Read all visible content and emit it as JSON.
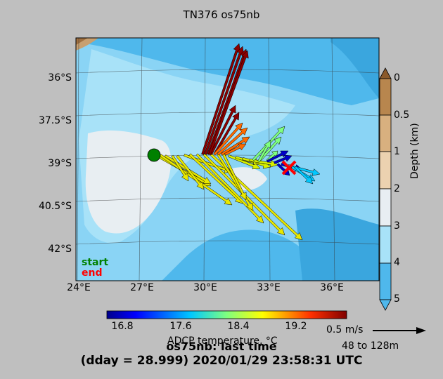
{
  "title": "TN376 os75nb",
  "latitude_labels": [
    "36°S",
    "37.5°S",
    "39°S",
    "40.5°S",
    "42°S"
  ],
  "longitude_labels": [
    "24°E",
    "27°E",
    "30°E",
    "33°E",
    "36°E"
  ],
  "depth_colorbar": {
    "label": "Depth (km)",
    "ticks": [
      "0",
      "0.5",
      "1",
      "2",
      "3",
      "4",
      "5"
    ],
    "colors": [
      "#8b5a2b",
      "#b8864e",
      "#d8b07f",
      "#ecd2b0",
      "#e8eef2",
      "#a8e2f8",
      "#8ad4f5",
      "#4fb8ec"
    ]
  },
  "temp_colorbar": {
    "label": "ADCP temperature, °C",
    "ticks": [
      "16.8",
      "17.6",
      "18.4",
      "19.2"
    ]
  },
  "reference_vector": {
    "speed": "0.5 m/s",
    "range": "48 to 128m"
  },
  "legend": {
    "start": "start",
    "end": "end",
    "start_color": "#008000",
    "end_color": "#ff0000"
  },
  "footer": {
    "line1": "os75nb: last time",
    "line2": "(dday = 28.999) 2020/01/29 23:58:31 UTC"
  }
}
